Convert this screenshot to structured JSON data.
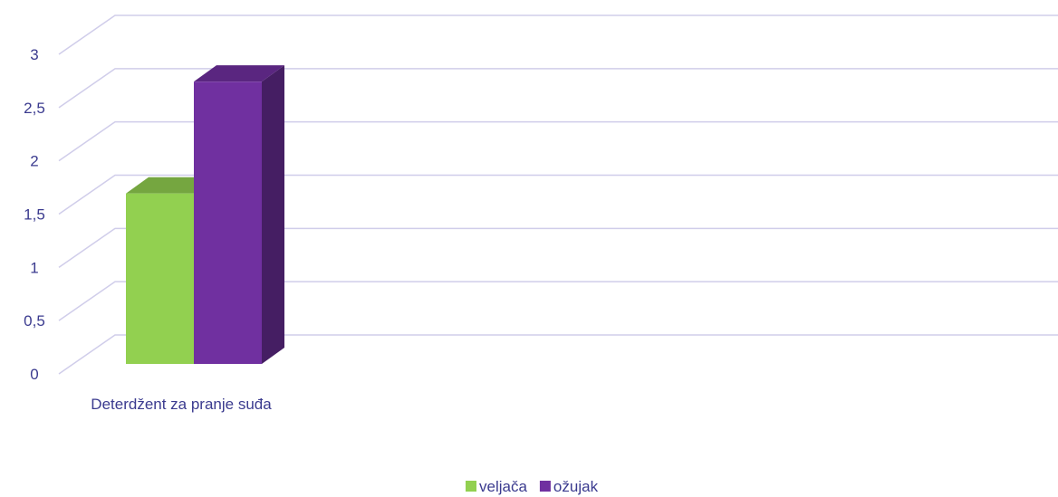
{
  "chart_data": {
    "type": "bar3d",
    "categories": [
      "Deterdžent za pranje suđa"
    ],
    "series": [
      {
        "name": "veljača",
        "color": "#92d050",
        "values": [
          1.6
        ]
      },
      {
        "name": "ožujak",
        "color": "#7030a0",
        "values": [
          2.65
        ]
      }
    ],
    "ylim": [
      0,
      3
    ],
    "yticks": [
      0,
      {
        "value": 0.5,
        "label": "0,5"
      },
      1,
      {
        "value": 1.5,
        "label": "1,5"
      },
      2,
      {
        "value": 2.5,
        "label": "2,5"
      },
      3
    ],
    "grid": true,
    "legend": "bottom"
  }
}
